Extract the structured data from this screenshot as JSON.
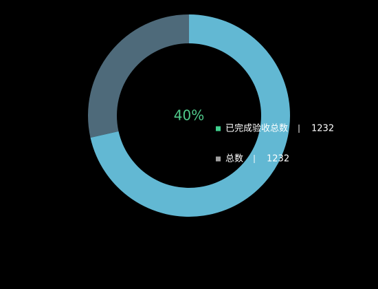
{
  "chart_data": {
    "type": "donut",
    "center_label": "40%",
    "center_color": "#4fc98a",
    "values": [
      71.5,
      28.5
    ],
    "colors": [
      "#62b8d3",
      "#4e6a7a"
    ],
    "legend": [
      {
        "name": "已完成验收总数",
        "value": 1232,
        "color": "#3fcf8e"
      },
      {
        "name": "总数",
        "value": 1232,
        "color": "#a0a0a0"
      }
    ]
  }
}
